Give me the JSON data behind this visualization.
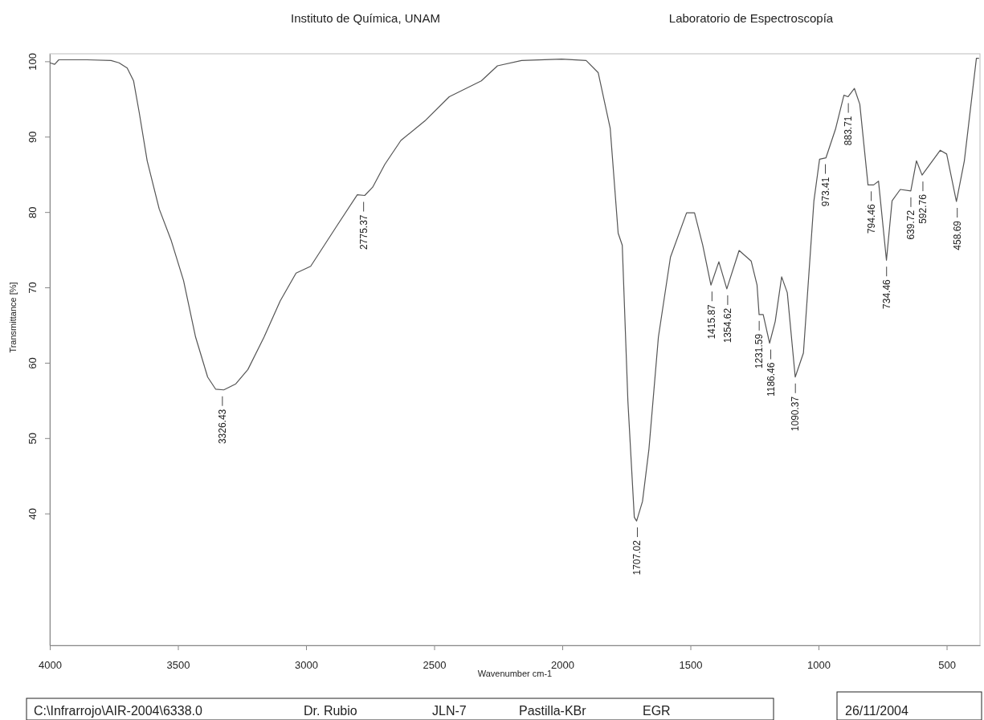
{
  "chart_data": {
    "type": "line",
    "title": "Instituto de Química, UNAM",
    "subtitle": "Laboratorio de Espectroscopía",
    "xlabel": "Wavenumber cm-1",
    "ylabel": "Transmittance [%]",
    "xlim": [
      4000,
      370
    ],
    "ylim": [
      22.5,
      101
    ],
    "xticks": [
      4000,
      3500,
      3000,
      2500,
      2000,
      1500,
      1000,
      500
    ],
    "yticks": [
      40,
      50,
      60,
      70,
      80,
      90,
      100
    ],
    "grid": false,
    "marker": "none",
    "line_style": "solid",
    "series": [
      {
        "color": "#555555",
        "x": [
          4000,
          3981,
          3965,
          3855,
          3761,
          3730,
          3698,
          3673,
          3651,
          3620,
          3573,
          3526,
          3478,
          3431,
          3384,
          3353,
          3321,
          3274,
          3227,
          3164,
          3101,
          3039,
          2982,
          2881,
          2800,
          2771,
          2740,
          2693,
          2630,
          2536,
          2441,
          2316,
          2253,
          2159,
          2002,
          1907,
          1860,
          1813,
          1782,
          1766,
          1744,
          1719,
          1710,
          1687,
          1662,
          1625,
          1578,
          1515,
          1484,
          1452,
          1420,
          1389,
          1358,
          1310,
          1263,
          1240,
          1232,
          1216,
          1191,
          1169,
          1144,
          1122,
          1091,
          1059,
          1018,
          996,
          971,
          933,
          901,
          885,
          860,
          839,
          807,
          785,
          766,
          735,
          713,
          681,
          640,
          618,
          596,
          525,
          500,
          462,
          431,
          384,
          374
        ],
        "values": [
          99.8,
          99.6,
          100.2,
          100.2,
          100.1,
          99.8,
          99.1,
          97.4,
          93.2,
          86.8,
          80.4,
          76.2,
          70.9,
          63.4,
          58.1,
          56.5,
          56.4,
          57.2,
          59.1,
          63.4,
          68.2,
          71.9,
          72.8,
          78.1,
          82.3,
          82.2,
          83.3,
          86.3,
          89.5,
          92.1,
          95.3,
          97.4,
          99.4,
          100.1,
          100.3,
          100.1,
          98.5,
          91.1,
          77.2,
          75.6,
          54.9,
          39.5,
          39.0,
          41.6,
          48.5,
          63.4,
          74.0,
          79.9,
          79.9,
          75.6,
          70.3,
          73.4,
          69.8,
          74.9,
          73.5,
          70.3,
          66.4,
          66.4,
          62.6,
          65.5,
          71.4,
          69.3,
          58.1,
          61.3,
          81.5,
          87.0,
          87.2,
          91.1,
          95.5,
          95.3,
          96.4,
          94.3,
          83.6,
          83.6,
          84.1,
          73.6,
          81.5,
          83.0,
          82.8,
          86.8,
          84.9,
          88.2,
          87.7,
          81.4,
          86.8,
          100.4,
          100.4
        ]
      }
    ],
    "annotations": [
      {
        "text": "3326.43",
        "x": 3326.43,
        "y": 56.4
      },
      {
        "text": "2775.37",
        "x": 2775.37,
        "y": 82.2
      },
      {
        "text": "1707.02",
        "x": 1707.02,
        "y": 39.0
      },
      {
        "text": "1415.87",
        "x": 1415.87,
        "y": 70.3
      },
      {
        "text": "1354.62",
        "x": 1354.62,
        "y": 69.8
      },
      {
        "text": "1231.59",
        "x": 1231.59,
        "y": 66.4
      },
      {
        "text": "1186.46",
        "x": 1186.46,
        "y": 62.6
      },
      {
        "text": "1090.37",
        "x": 1090.37,
        "y": 58.1
      },
      {
        "text": "973.41",
        "x": 973.41,
        "y": 87.2
      },
      {
        "text": "883.71",
        "x": 883.71,
        "y": 95.3
      },
      {
        "text": "794.46",
        "x": 794.46,
        "y": 83.6
      },
      {
        "text": "734.46",
        "x": 734.46,
        "y": 73.6
      },
      {
        "text": "639.72",
        "x": 639.72,
        "y": 82.8
      },
      {
        "text": "592.76",
        "x": 592.76,
        "y": 84.9
      },
      {
        "text": "458.69",
        "x": 458.69,
        "y": 81.4
      },
      "C:\\Infrarrojo\\AIR-2004\\6338.0",
      "Dr. Rubio",
      "JLN-7",
      "Pastilla-KBr",
      "EGR",
      "26/11/2004"
    ]
  }
}
